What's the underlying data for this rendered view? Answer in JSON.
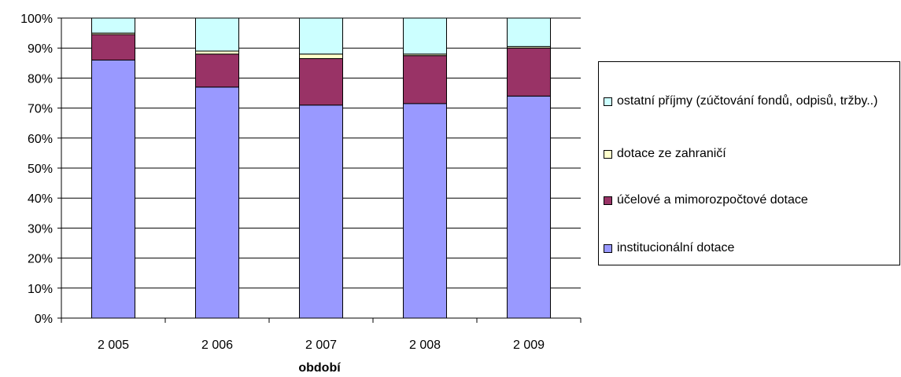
{
  "chart_data": {
    "type": "bar",
    "stacked": true,
    "percent": true,
    "xlabel": "období",
    "ylabel": "",
    "ylim": [
      0,
      100
    ],
    "yticks": [
      "0%",
      "10%",
      "20%",
      "30%",
      "40%",
      "50%",
      "60%",
      "70%",
      "80%",
      "90%",
      "100%"
    ],
    "categories": [
      "2 005",
      "2 006",
      "2 007",
      "2 008",
      "2 009"
    ],
    "series": [
      {
        "name": "institucionální dotace",
        "color": "#9999ff",
        "values": [
          86,
          77,
          71,
          71.5,
          74
        ]
      },
      {
        "name": "účelové a mimorozpočtové dotace",
        "color": "#993366",
        "values": [
          8.5,
          11,
          15.5,
          16,
          16
        ]
      },
      {
        "name": "dotace ze zahraničí",
        "color": "#ffffcc",
        "values": [
          0.5,
          1,
          1.5,
          0.5,
          0.5
        ]
      },
      {
        "name": "ostatní příjmy (zúčtování fondů, odpisů, tržby..)",
        "color": "#ccffff",
        "values": [
          5,
          11,
          12,
          12,
          9.5
        ]
      }
    ],
    "legend_position": "right",
    "grid": true
  }
}
